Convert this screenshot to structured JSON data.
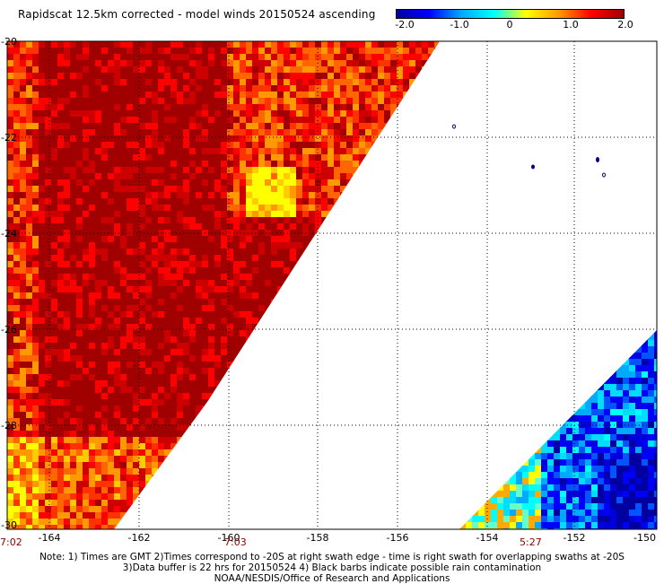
{
  "title": "Rapidscat 12.5km corrected - model winds 20150524 ascending",
  "colorbar": {
    "ticks": [
      "-2.0",
      "-1.0",
      "0",
      "1.0",
      "2.0"
    ],
    "stops": [
      "#0000a0",
      "#0000ff",
      "#00aaff",
      "#00ffff",
      "#ffff00",
      "#ff9900",
      "#ff0000",
      "#a00000"
    ]
  },
  "map": {
    "lon_labels": [
      "-164",
      "-162",
      "-160",
      "-158",
      "-156",
      "-154",
      "-152",
      "-150"
    ],
    "lat_labels": [
      "-20",
      "-22",
      "-24",
      "-26",
      "-28",
      "-30"
    ],
    "time_labels": [
      "7:02",
      "7:03",
      "5:27"
    ]
  },
  "notes": [
    "Note: 1) Times are GMT 2)Times correspond to -20S at right swath edge - time is right swath for overlapping swaths at -20S",
    "3)Data buffer is 22 hrs for 20150524 4) Black barbs indicate possible rain contamination",
    "NOAA/NESDIS/Office of Research and Applications"
  ]
}
